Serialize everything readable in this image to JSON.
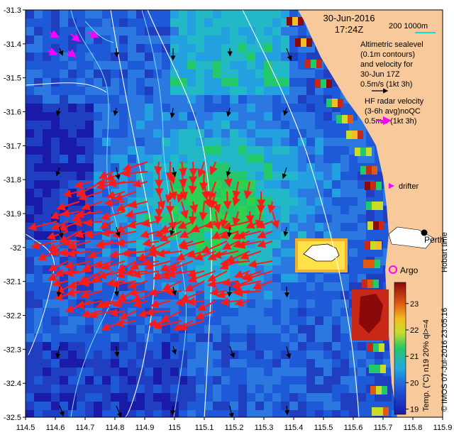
{
  "title": {
    "date": "30-Jun-2016",
    "time": "17:24Z"
  },
  "scale_bar": {
    "label": "200 1000m"
  },
  "legend": {
    "altimetric_lines": [
      "Altimetric sealevel",
      "(0.1m contours)",
      "and velocity for",
      "30-Jun 17Z",
      "0.5m/s (1kt 3h)"
    ],
    "hf_lines": [
      "HF radar velocity",
      "(3-6h avg)noQC",
      "0.5m/s (1kt 3h)"
    ],
    "drifter_label": "drifter",
    "argo_label": "Argo",
    "city_label": "Perth",
    "hobart_time": "Hobart time"
  },
  "colorbar": {
    "label": "Temp. (°C) n19 20% ql>=4",
    "ticks": [
      "23",
      "22",
      "21",
      "20",
      "19"
    ],
    "range": [
      18.8,
      23.8
    ]
  },
  "credit": "© IMOS 07-Jul-2016 23:05:16",
  "axes": {
    "x_ticks": [
      "114.5",
      "114.6",
      "114.7",
      "114.8",
      "114.9",
      "115",
      "115.1",
      "115.2",
      "115.3",
      "115.4",
      "115.5",
      "115.6",
      "115.7",
      "115.8",
      "115.9"
    ],
    "y_ticks": [
      "-31.3",
      "-31.4",
      "-31.5",
      "-31.6",
      "-31.7",
      "-31.8",
      "-31.9",
      "-32",
      "-32.1",
      "-32.2",
      "-32.3",
      "-32.4",
      "-32.5"
    ],
    "lon_range": [
      114.5,
      115.9
    ],
    "lat_range": [
      -32.5,
      -31.3
    ]
  },
  "colors": {
    "land": "#f8c99a",
    "hf_arrow": "#ff1a1a",
    "alti_arrow": "#000000",
    "drifter": "#ff00ff",
    "scale_line": "#00e5cc",
    "contour": "#ffffff"
  }
}
